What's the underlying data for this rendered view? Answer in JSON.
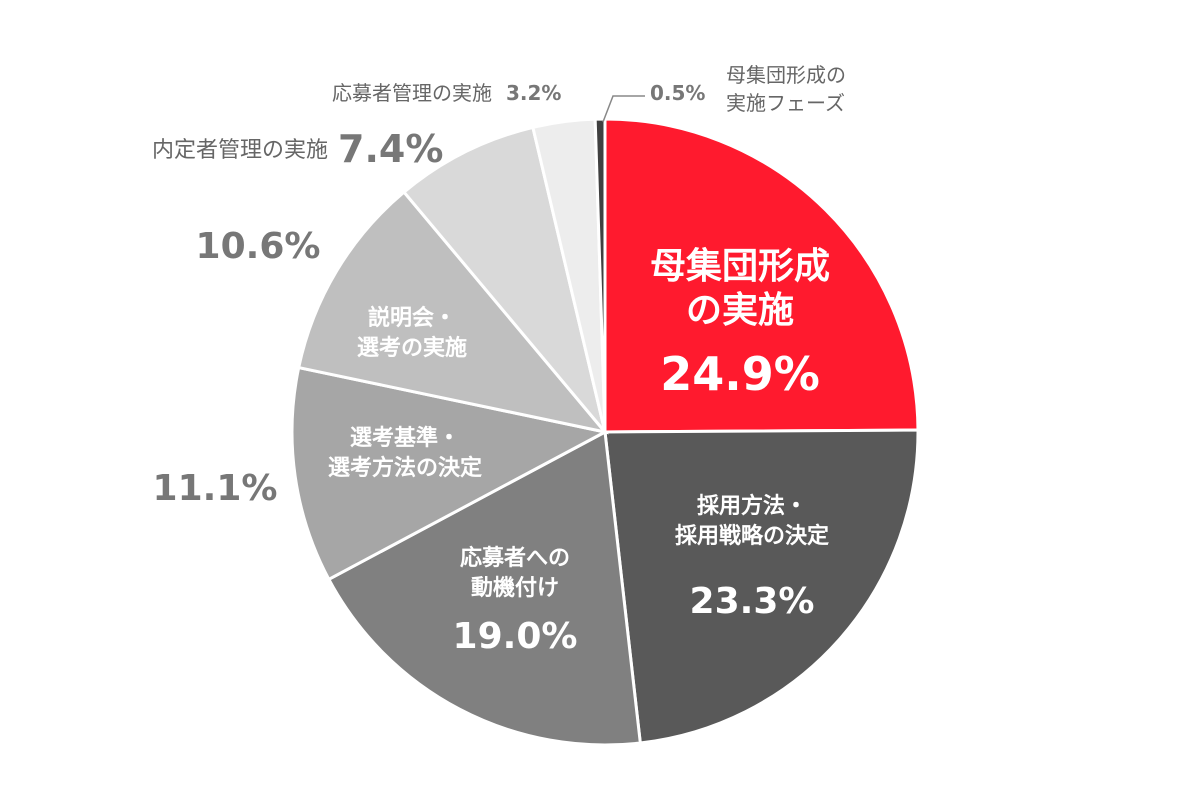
{
  "chart_data": {
    "type": "pie",
    "start_angle_deg": 0,
    "direction": "clockwise",
    "slices": [
      {
        "label_lines": [
          "母集団形成",
          "の実施"
        ],
        "value": 24.9,
        "value_text": "24.9%",
        "color": "#ff1a2e"
      },
      {
        "label_lines": [
          "採用方法・",
          "採用戦略の決定"
        ],
        "value": 23.3,
        "value_text": "23.3%",
        "color": "#595959"
      },
      {
        "label_lines": [
          "応募者への",
          "動機付け"
        ],
        "value": 19.0,
        "value_text": "19.0%",
        "color": "#808080"
      },
      {
        "label_lines": [
          "選考基準・",
          "選考方法の決定"
        ],
        "value": 11.1,
        "value_text": "11.1%",
        "color": "#a6a6a6"
      },
      {
        "label_lines": [
          "説明会・",
          "選考の実施"
        ],
        "value": 10.6,
        "value_text": "10.6%",
        "color": "#bfbfbf"
      },
      {
        "label_lines": [
          "内定者管理の実施"
        ],
        "value": 7.4,
        "value_text": "7.4%",
        "color": "#d9d9d9"
      },
      {
        "label_lines": [
          "応募者管理の実施"
        ],
        "value": 3.2,
        "value_text": "3.2%",
        "color": "#ededed"
      },
      {
        "label_lines": [
          "母集団形成の",
          "実施フェーズ"
        ],
        "value": 0.5,
        "value_text": "0.5%",
        "color": "#404040"
      }
    ]
  }
}
